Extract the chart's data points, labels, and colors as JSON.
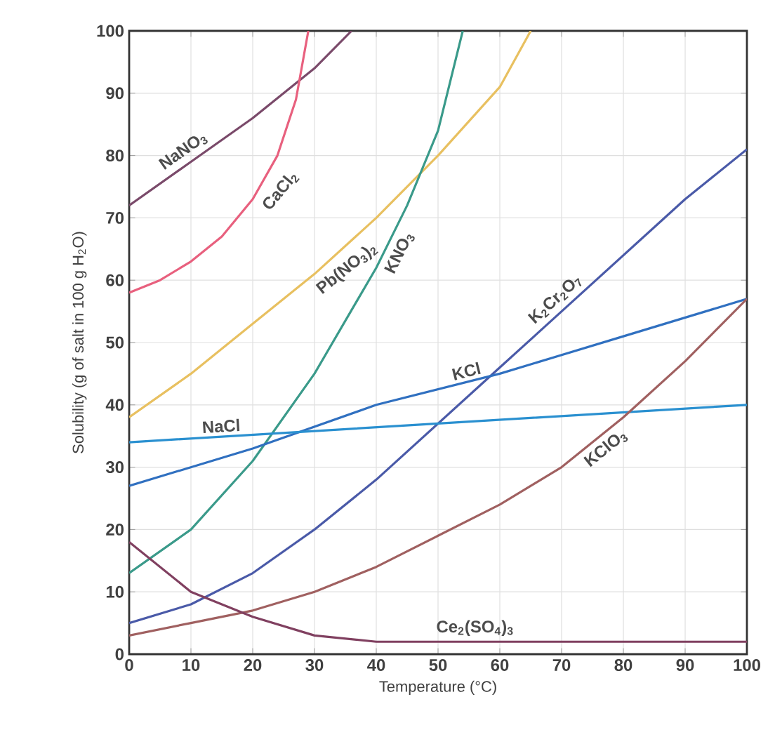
{
  "chart_data": {
    "type": "line",
    "xlabel": "Temperature (°C)",
    "ylabel": "Solubility (g of salt in 100 g H$_{2}$O)",
    "xlim": [
      0,
      100
    ],
    "ylim": [
      0,
      100
    ],
    "xticks": [
      0,
      10,
      20,
      30,
      40,
      50,
      60,
      70,
      80,
      90,
      100
    ],
    "yticks": [
      0,
      10,
      20,
      30,
      40,
      50,
      60,
      70,
      80,
      90,
      100
    ],
    "grid": true,
    "marker": "none",
    "line_style": "solid",
    "series": [
      {
        "name": "NaNO$_{3}$",
        "color": "#7a4a6a",
        "x": [
          0,
          10,
          20,
          30,
          36
        ],
        "values": [
          72,
          79,
          86,
          94,
          100
        ]
      },
      {
        "name": "CaCl$_{2}$",
        "color": "#e8607e",
        "x": [
          0,
          5,
          10,
          15,
          20,
          24,
          27,
          29
        ],
        "values": [
          58,
          60,
          63,
          67,
          73,
          80,
          89,
          100
        ]
      },
      {
        "name": "Pb(NO$_{3}$)$_{2}$",
        "color": "#e8c060",
        "x": [
          0,
          10,
          20,
          30,
          40,
          50,
          60,
          65
        ],
        "values": [
          38,
          45,
          53,
          61,
          70,
          80,
          91,
          100
        ]
      },
      {
        "name": "KNO$_{3}$",
        "color": "#3a9a8a",
        "x": [
          0,
          10,
          20,
          30,
          40,
          45,
          50,
          54
        ],
        "values": [
          13,
          20,
          31,
          45,
          62,
          72,
          84,
          100
        ]
      },
      {
        "name": "K$_{2}$Cr$_{2}$O$_{7}$",
        "color": "#4a5aa8",
        "x": [
          0,
          10,
          20,
          30,
          40,
          50,
          60,
          70,
          80,
          90,
          100
        ],
        "values": [
          5,
          8,
          13,
          20,
          28,
          37,
          46,
          55,
          64,
          73,
          81
        ]
      },
      {
        "name": "KCl",
        "color": "#3070c0",
        "x": [
          0,
          20,
          40,
          60,
          80,
          100
        ],
        "values": [
          27,
          33,
          40,
          45,
          51,
          57
        ]
      },
      {
        "name": "NaCl",
        "color": "#2a90d0",
        "x": [
          0,
          50,
          100
        ],
        "values": [
          34,
          37,
          40
        ]
      },
      {
        "name": "KClO$_{3}$",
        "color": "#a06060",
        "x": [
          0,
          10,
          20,
          30,
          40,
          50,
          60,
          70,
          80,
          90,
          100
        ],
        "values": [
          3,
          5,
          7,
          10,
          14,
          19,
          24,
          30,
          38,
          47,
          57
        ]
      },
      {
        "name": "Ce$_{2}$(SO$_{4}$)$_{3}$",
        "color": "#804060",
        "x": [
          0,
          10,
          20,
          30,
          40,
          60,
          100
        ],
        "values": [
          18,
          10,
          6,
          3,
          2,
          2,
          2
        ]
      }
    ]
  }
}
